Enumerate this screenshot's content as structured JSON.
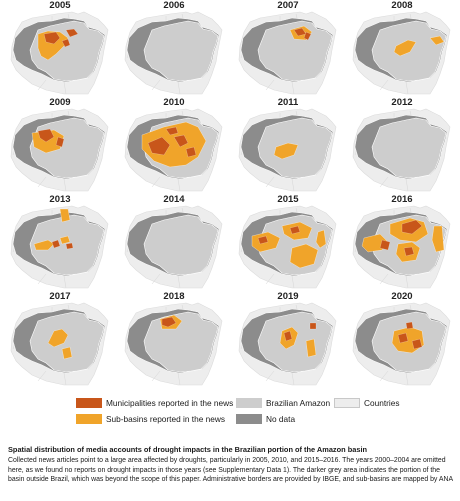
{
  "colors": {
    "no_data": "#8c8c8c",
    "amazon": "#cdcdcd",
    "countries": "#ededed",
    "country_border": "#ffffff",
    "municipalities": "#c8561a",
    "subbasins": "#f0a42a"
  },
  "panels": [
    {
      "year": "2005",
      "sub": [
        "M 30,24 L 40,21 L 52,22 L 60,28 L 56,36 L 48,44 L 40,50 L 33,46 L 30,38 Z"
      ],
      "mun": [
        "M 36,24 L 48,22 L 52,28 L 46,34 L 38,32 Z",
        "M 58,20 L 66,19 L 70,24 L 62,27 Z",
        "M 54,31 L 60,29 L 62,35 L 57,37 Z"
      ]
    },
    {
      "year": "2006",
      "sub": [],
      "mun": []
    },
    {
      "year": "2007",
      "sub": [
        "M 54,20 L 68,16 L 76,22 L 70,30 L 58,29 Z"
      ],
      "mun": [
        "M 58,20 L 66,18 L 70,24 L 62,26 Z",
        "M 70,22 L 75,24 L 72,30 L 68,28 Z"
      ]
    },
    {
      "year": "2008",
      "sub": [
        "M 46,36 L 58,30 L 66,32 L 60,42 L 50,46 L 44,42 Z",
        "M 80,28 L 90,26 L 94,32 L 86,35 Z"
      ],
      "mun": []
    },
    {
      "year": "2009",
      "sub": [
        "M 24,26 L 46,23 L 56,29 L 52,42 L 38,46 L 26,40 Z"
      ],
      "mun": [
        "M 30,24 L 42,22 L 46,30 L 38,35 L 32,31 Z",
        "M 50,30 L 56,32 L 54,40 L 48,38 Z"
      ]
    },
    {
      "year": "2010",
      "sub": [
        "M 20,28 L 42,20 L 64,15 L 76,20 L 84,34 L 76,50 L 64,58 L 48,60 L 32,54 L 20,42 Z"
      ],
      "mun": [
        "M 26,36 L 40,30 L 48,38 L 42,48 L 30,46 Z",
        "M 52,30 L 62,28 L 66,36 L 58,40 Z",
        "M 44,22 L 54,20 L 56,26 L 48,28 Z",
        "M 64,42 L 72,40 L 74,48 L 66,50 Z"
      ]
    },
    {
      "year": "2011",
      "sub": [
        "M 40,40 L 52,36 L 62,38 L 58,48 L 46,52 L 38,48 Z"
      ],
      "mun": []
    },
    {
      "year": "2012",
      "sub": [],
      "mun": []
    },
    {
      "year": "2013",
      "sub": [
        "M 52,5 L 60,5 L 62,16 L 54,18 Z",
        "M 26,40 L 40,36 L 46,40 L 40,46 L 28,46 Z",
        "M 52,34 L 60,32 L 62,38 L 54,40 Z"
      ],
      "mun": [
        "M 44,38 L 50,36 L 52,42 L 46,44 Z",
        "M 58,40 L 64,39 L 65,44 L 59,45 Z"
      ]
    },
    {
      "year": "2014",
      "sub": [],
      "mun": []
    },
    {
      "year": "2015",
      "sub": [
        "M 16,32 L 32,28 L 44,34 L 40,44 L 24,48 L 16,42 Z",
        "M 46,22 L 64,18 L 76,24 L 72,34 L 58,36 L 48,30 Z",
        "M 56,44 L 70,40 L 82,46 L 78,60 L 64,64 L 54,58 Z",
        "M 82,28 L 88,26 L 90,40 L 84,44 L 80,38 Z"
      ],
      "mun": [
        "M 22,34 L 30,32 L 32,38 L 24,40 Z",
        "M 54,24 L 62,22 L 64,28 L 56,30 Z"
      ]
    },
    {
      "year": "2016",
      "sub": [
        "M 14,34 L 30,30 L 38,38 L 32,46 L 18,48 L 12,42 Z",
        "M 40,20 L 60,14 L 74,18 L 78,30 L 66,38 L 50,36 L 40,30 Z",
        "M 48,40 L 62,38 L 70,44 L 66,56 L 52,58 L 46,50 Z",
        "M 84,22 L 92,22 L 94,46 L 86,48 L 82,36 Z"
      ],
      "mun": [
        "M 52,20 L 66,16 L 72,22 L 62,30 L 52,28 Z",
        "M 32,36 L 40,38 L 38,46 L 30,44 Z",
        "M 54,44 L 62,43 L 64,50 L 56,52 Z"
      ]
    },
    {
      "year": "2017",
      "sub": [
        "M 46,30 L 54,28 L 60,34 L 56,42 L 46,46 L 40,42 Z",
        "M 54,48 L 62,46 L 64,56 L 56,58 Z"
      ],
      "mun": []
    },
    {
      "year": "2018",
      "sub": [
        "M 38,18 L 52,14 L 60,20 L 54,28 L 40,28 Z"
      ],
      "mun": [
        "M 40,18 L 50,16 L 54,22 L 46,26 L 40,24 Z"
      ]
    },
    {
      "year": "2019",
      "sub": [
        "M 46,30 L 56,26 L 62,32 L 58,44 L 50,48 L 44,42 Z",
        "M 70,40 L 78,38 L 80,54 L 72,56 Z"
      ],
      "mun": [
        "M 48,32 L 54,30 L 56,38 L 50,40 Z",
        "M 74,22 L 80,22 L 80,28 L 74,28 Z"
      ]
    },
    {
      "year": "2020",
      "sub": [
        "M 44,30 L 60,26 L 72,30 L 74,44 L 62,52 L 48,50 L 42,42 Z"
      ],
      "mun": [
        "M 48,34 L 56,32 L 58,40 L 50,42 Z",
        "M 62,40 L 70,38 L 72,46 L 64,48 Z",
        "M 56,22 L 62,21 L 63,27 L 57,28 Z"
      ]
    }
  ],
  "legend": [
    {
      "label": "Municipalities reported in the news",
      "swatch": "municipalities"
    },
    {
      "label": "Brazilian Amazon",
      "swatch": "amazon"
    },
    {
      "label": "Countries",
      "swatch": "countries"
    },
    {
      "label": "Sub-basins reported in the news",
      "swatch": "subbasins"
    },
    {
      "label": "No data",
      "swatch": "no_data"
    }
  ],
  "caption": {
    "title": "Spatial distribution of media accounts of drought impacts in the Brazilian portion of the Amazon basin",
    "body": "Collected news articles point to a large area affected by droughts, particularly in 2005, 2010, and 2015–2016. The years 2000–2004 are omitted here, as we found no reports on drought impacts in those years (see Supplementary Data 1). The darker grey area indicates the portion of the basin outside Brazil, which was beyond the scope of this paper. Administrative borders are provided by IBGE, and sub-basins are mapped by ANA"
  }
}
